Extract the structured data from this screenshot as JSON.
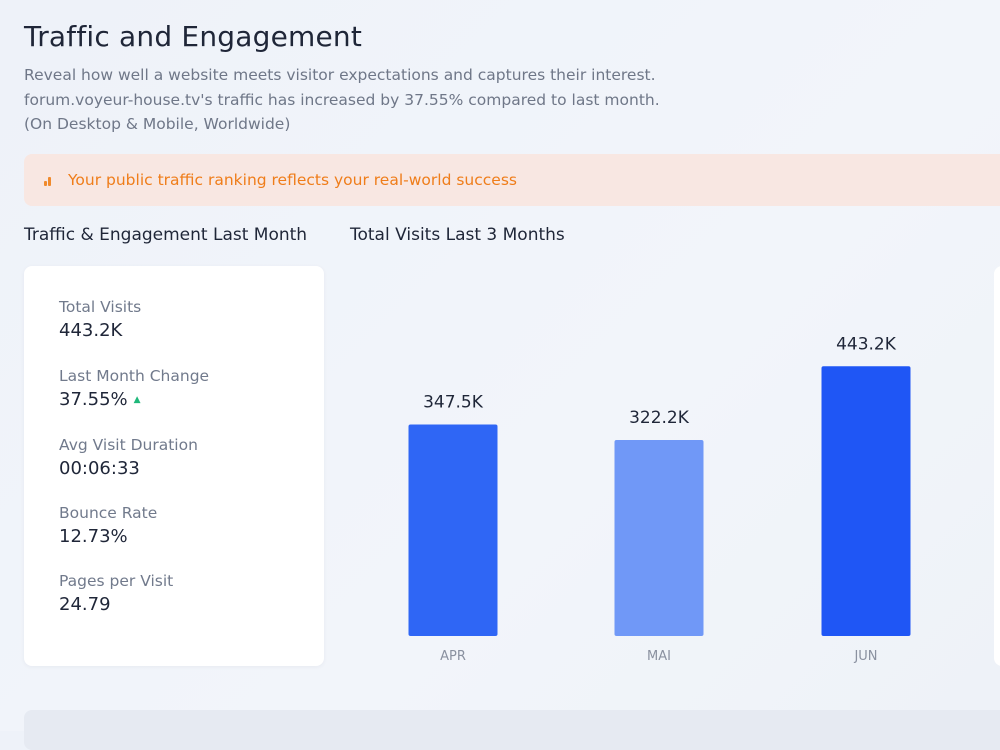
{
  "header": {
    "title": "Traffic and Engagement",
    "description": [
      "Reveal how well a website meets visitor expectations and captures their interest.",
      "forum.voyeur-house.tv's traffic has increased by 37.55% compared to last month.",
      "(On Desktop & Mobile, Worldwide)"
    ]
  },
  "banner": {
    "icon": "bar-chart-icon",
    "text": "Your public traffic ranking reflects your real-world success",
    "color": "#ef7d1a"
  },
  "engagement": {
    "heading": "Traffic & Engagement Last Month",
    "metrics": [
      {
        "label": "Total Visits",
        "value": "443.2K"
      },
      {
        "label": "Last Month Change",
        "value": "37.55%",
        "trend": "up"
      },
      {
        "label": "Avg Visit Duration",
        "value": "00:06:33"
      },
      {
        "label": "Bounce Rate",
        "value": "12.73%"
      },
      {
        "label": "Pages per Visit",
        "value": "24.79"
      }
    ]
  },
  "visits": {
    "heading": "Total Visits Last 3 Months"
  },
  "chart_data": {
    "type": "bar",
    "title": "Total Visits Last 3 Months",
    "categories": [
      "APR",
      "MAI",
      "JUN"
    ],
    "values": [
      347.5,
      322.2,
      443.2
    ],
    "value_labels": [
      "347.5K",
      "322.2K",
      "443.2K"
    ],
    "unit": "K visits",
    "colors": [
      "#2f66f5",
      "#7098f7",
      "#1f56f5"
    ],
    "ylim": [
      0,
      470
    ],
    "grid": false,
    "xlabel": "",
    "ylabel": ""
  }
}
